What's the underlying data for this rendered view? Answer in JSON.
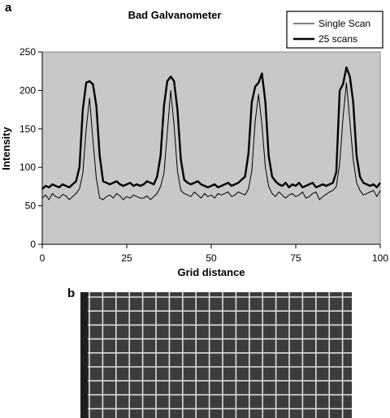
{
  "panel_labels": {
    "top": "a",
    "bottom": "b"
  },
  "chart_data": {
    "type": "line",
    "title": "Bad Galvanometer",
    "xlabel": "Grid distance",
    "ylabel": "Intensity",
    "xlim": [
      0,
      100
    ],
    "ylim": [
      0,
      250
    ],
    "x_ticks": [
      0,
      25,
      50,
      75,
      100
    ],
    "y_ticks": [
      0,
      50,
      100,
      150,
      200,
      250
    ],
    "grid": false,
    "background": "#c8c8c8",
    "legend_position": "top-right",
    "series": [
      {
        "name": "Single Scan",
        "color": "#000000",
        "line_width": 1,
        "x": [
          0,
          1,
          2,
          3,
          4,
          5,
          6,
          7,
          8,
          9,
          10,
          11,
          12,
          13,
          14,
          15,
          16,
          17,
          18,
          19,
          20,
          21,
          22,
          23,
          24,
          25,
          26,
          27,
          28,
          29,
          30,
          31,
          32,
          33,
          34,
          35,
          36,
          37,
          38,
          39,
          40,
          41,
          42,
          43,
          44,
          45,
          46,
          47,
          48,
          49,
          50,
          51,
          52,
          53,
          54,
          55,
          56,
          57,
          58,
          59,
          60,
          61,
          62,
          63,
          64,
          65,
          66,
          67,
          68,
          69,
          70,
          71,
          72,
          73,
          74,
          75,
          76,
          77,
          78,
          79,
          80,
          81,
          82,
          83,
          84,
          85,
          86,
          87,
          88,
          89,
          90,
          91,
          92,
          93,
          94,
          95,
          96,
          97,
          98,
          99,
          100
        ],
        "values": [
          60,
          64,
          58,
          66,
          62,
          60,
          65,
          63,
          58,
          62,
          66,
          72,
          92,
          150,
          190,
          135,
          85,
          60,
          58,
          62,
          64,
          60,
          66,
          63,
          58,
          62,
          60,
          64,
          62,
          60,
          60,
          63,
          58,
          62,
          66,
          75,
          92,
          145,
          200,
          155,
          95,
          70,
          66,
          64,
          62,
          68,
          64,
          60,
          66,
          62,
          64,
          60,
          66,
          64,
          66,
          68,
          62,
          64,
          68,
          66,
          64,
          72,
          95,
          160,
          195,
          155,
          100,
          75,
          66,
          62,
          68,
          64,
          60,
          64,
          66,
          62,
          64,
          68,
          60,
          62,
          66,
          68,
          58,
          62,
          65,
          68,
          70,
          75,
          105,
          165,
          210,
          160,
          110,
          80,
          70,
          64,
          66,
          68,
          70,
          62,
          70
        ]
      },
      {
        "name": "25 scans",
        "color": "#000000",
        "line_width": 2.4,
        "x": [
          0,
          1,
          2,
          3,
          4,
          5,
          6,
          7,
          8,
          9,
          10,
          11,
          12,
          13,
          14,
          15,
          16,
          17,
          18,
          19,
          20,
          21,
          22,
          23,
          24,
          25,
          26,
          27,
          28,
          29,
          30,
          31,
          32,
          33,
          34,
          35,
          36,
          37,
          38,
          39,
          40,
          41,
          42,
          43,
          44,
          45,
          46,
          47,
          48,
          49,
          50,
          51,
          52,
          53,
          54,
          55,
          56,
          57,
          58,
          59,
          60,
          61,
          62,
          63,
          64,
          65,
          66,
          67,
          68,
          69,
          70,
          71,
          72,
          73,
          74,
          75,
          76,
          77,
          78,
          79,
          80,
          81,
          82,
          83,
          84,
          85,
          86,
          87,
          88,
          89,
          90,
          91,
          92,
          93,
          94,
          95,
          96,
          97,
          98,
          99,
          100
        ],
        "values": [
          72,
          76,
          74,
          78,
          76,
          74,
          78,
          76,
          74,
          78,
          82,
          100,
          175,
          210,
          212,
          208,
          180,
          115,
          82,
          80,
          78,
          80,
          82,
          78,
          76,
          78,
          80,
          76,
          78,
          76,
          78,
          82,
          80,
          78,
          88,
          115,
          180,
          212,
          218,
          212,
          175,
          110,
          84,
          80,
          78,
          80,
          82,
          78,
          76,
          74,
          76,
          78,
          74,
          76,
          78,
          80,
          76,
          78,
          80,
          84,
          88,
          118,
          185,
          205,
          210,
          222,
          185,
          115,
          88,
          82,
          78,
          76,
          80,
          74,
          78,
          76,
          80,
          74,
          76,
          78,
          80,
          74,
          76,
          78,
          76,
          78,
          80,
          94,
          200,
          208,
          230,
          218,
          185,
          115,
          88,
          80,
          78,
          76,
          78,
          74,
          80
        ]
      }
    ]
  }
}
